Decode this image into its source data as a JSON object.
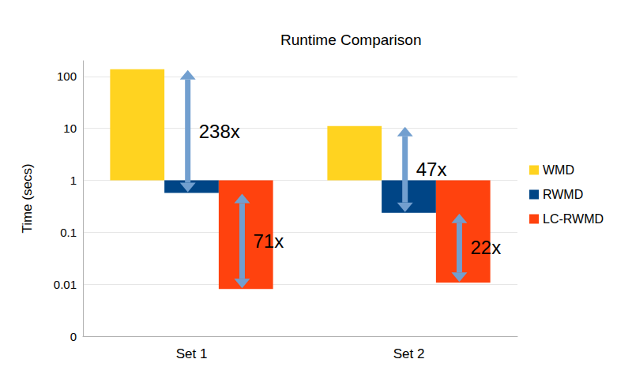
{
  "chart_data": {
    "type": "bar",
    "title": "Runtime Comparison",
    "y_label": "Time (secs)",
    "categories": [
      "Set 1",
      "Set 2"
    ],
    "series": [
      {
        "name": "WMD",
        "color": "#ffd320",
        "values": [
          137,
          11.1
        ]
      },
      {
        "name": "RWMD",
        "color": "#004586",
        "values": [
          0.57,
          0.237
        ]
      },
      {
        "name": "LC-RWMD",
        "color": "#ff420e",
        "values": [
          0.0081,
          0.0107
        ]
      }
    ],
    "log": "y",
    "ylim": [
      0.001,
      200
    ],
    "yticks": [
      {
        "value": 0.001,
        "label": "0"
      },
      0.01,
      0.1,
      1,
      10,
      100
    ],
    "grid": true,
    "legend": "right",
    "annotations": [
      {
        "category": "Set 1",
        "from": "WMD",
        "to": "RWMD",
        "text": "238x"
      },
      {
        "category": "Set 1",
        "from": "RWMD",
        "to": "LC-RWMD",
        "text": "71x"
      },
      {
        "category": "Set 2",
        "from": "WMD",
        "to": "RWMD",
        "text": "47x"
      },
      {
        "category": "Set 2",
        "from": "RWMD",
        "to": "LC-RWMD",
        "text": "22x"
      }
    ]
  }
}
